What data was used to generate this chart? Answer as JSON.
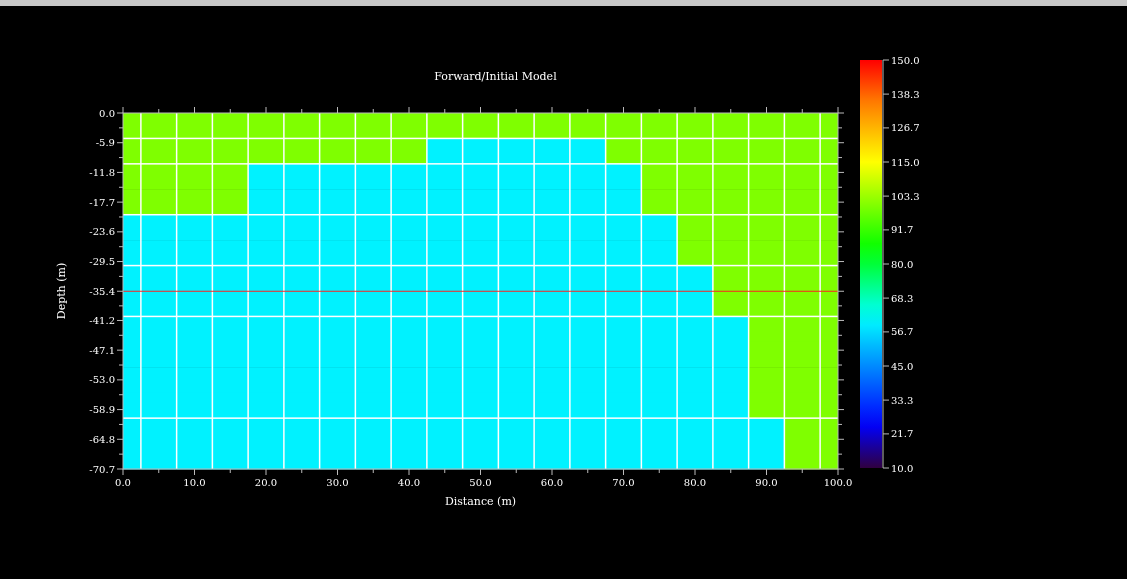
{
  "chart_data": {
    "type": "heatmap",
    "title": "Forward/Initial Model",
    "xlabel": "Distance (m)",
    "ylabel": "Depth (m)",
    "x": [
      1.25,
      5,
      10,
      15,
      20,
      25,
      30,
      35,
      40,
      45,
      50,
      55,
      60,
      65,
      70,
      75,
      80,
      85,
      90,
      95,
      98.75
    ],
    "cells": [
      [
        100,
        100,
        100,
        100,
        100,
        100,
        100,
        100,
        100,
        100,
        100,
        100,
        100,
        100,
        100,
        100,
        100,
        100,
        100,
        100,
        100
      ],
      [
        100,
        100,
        100,
        100,
        100,
        100,
        100,
        100,
        100,
        60,
        60,
        60,
        60,
        60,
        100,
        100,
        100,
        100,
        100,
        100,
        100
      ],
      [
        100,
        100,
        100,
        100,
        60,
        60,
        60,
        60,
        60,
        60,
        60,
        60,
        60,
        60,
        60,
        100,
        100,
        100,
        100,
        100,
        100
      ],
      [
        100,
        100,
        100,
        100,
        60,
        60,
        60,
        60,
        60,
        60,
        60,
        60,
        60,
        60,
        60,
        100,
        100,
        100,
        100,
        100,
        100
      ],
      [
        60,
        60,
        60,
        60,
        60,
        60,
        60,
        60,
        60,
        60,
        60,
        60,
        60,
        60,
        60,
        60,
        100,
        100,
        100,
        100,
        100
      ],
      [
        60,
        60,
        60,
        60,
        60,
        60,
        60,
        60,
        60,
        60,
        60,
        60,
        60,
        60,
        60,
        60,
        100,
        100,
        100,
        100,
        100
      ],
      [
        60,
        60,
        60,
        60,
        60,
        60,
        60,
        60,
        60,
        60,
        60,
        60,
        60,
        60,
        60,
        60,
        60,
        100,
        100,
        100,
        100
      ],
      [
        60,
        60,
        60,
        60,
        60,
        60,
        60,
        60,
        60,
        60,
        60,
        60,
        60,
        60,
        60,
        60,
        60,
        100,
        100,
        100,
        100
      ],
      [
        60,
        60,
        60,
        60,
        60,
        60,
        60,
        60,
        60,
        60,
        60,
        60,
        60,
        60,
        60,
        60,
        60,
        60,
        100,
        100,
        100
      ],
      [
        60,
        60,
        60,
        60,
        60,
        60,
        60,
        60,
        60,
        60,
        60,
        60,
        60,
        60,
        60,
        60,
        60,
        60,
        100,
        100,
        100
      ],
      [
        60,
        60,
        60,
        60,
        60,
        60,
        60,
        60,
        60,
        60,
        60,
        60,
        60,
        60,
        60,
        60,
        60,
        60,
        100,
        100,
        100
      ],
      [
        60,
        60,
        60,
        60,
        60,
        60,
        60,
        60,
        60,
        60,
        60,
        60,
        60,
        60,
        60,
        60,
        60,
        60,
        100,
        100,
        100
      ],
      [
        60,
        60,
        60,
        60,
        60,
        60,
        60,
        60,
        60,
        60,
        60,
        60,
        60,
        60,
        60,
        60,
        60,
        60,
        60,
        100,
        100
      ],
      [
        60,
        60,
        60,
        60,
        60,
        60,
        60,
        60,
        60,
        60,
        60,
        60,
        60,
        60,
        60,
        60,
        60,
        60,
        60,
        100,
        100
      ]
    ],
    "xlim": [
      0,
      100
    ],
    "xticks": [
      {
        "value": 0,
        "label": "0.0"
      },
      {
        "value": 5,
        "label": null
      },
      {
        "value": 10,
        "label": "10.0"
      },
      {
        "value": 15,
        "label": null
      },
      {
        "value": 20,
        "label": "20.0"
      },
      {
        "value": 25,
        "label": null
      },
      {
        "value": 30,
        "label": "30.0"
      },
      {
        "value": 35,
        "label": null
      },
      {
        "value": 40,
        "label": "40.0"
      },
      {
        "value": 45,
        "label": null
      },
      {
        "value": 50,
        "label": "50.0"
      },
      {
        "value": 55,
        "label": null
      },
      {
        "value": 60,
        "label": "60.0"
      },
      {
        "value": 65,
        "label": null
      },
      {
        "value": 70,
        "label": "70.0"
      },
      {
        "value": 75,
        "label": null
      },
      {
        "value": 80,
        "label": "80.0"
      },
      {
        "value": 85,
        "label": null
      },
      {
        "value": 90,
        "label": "90.0"
      },
      {
        "value": 95,
        "label": null
      },
      {
        "value": 100,
        "label": "100.0"
      }
    ],
    "ylim": [
      -70.7,
      0
    ],
    "yticks": [
      {
        "value": 0,
        "label": "0.0"
      },
      {
        "value": -2.95,
        "label": null
      },
      {
        "value": -5.9,
        "label": "-5.9"
      },
      {
        "value": -8.85,
        "label": null
      },
      {
        "value": -11.8,
        "label": "-11.8"
      },
      {
        "value": -14.75,
        "label": null
      },
      {
        "value": -17.7,
        "label": "-17.7"
      },
      {
        "value": -20.65,
        "label": null
      },
      {
        "value": -23.6,
        "label": "-23.6"
      },
      {
        "value": -26.55,
        "label": null
      },
      {
        "value": -29.5,
        "label": "-29.5"
      },
      {
        "value": -32.45,
        "label": null
      },
      {
        "value": -35.4,
        "label": "-35.4"
      },
      {
        "value": -38.3,
        "label": null
      },
      {
        "value": -41.2,
        "label": "-41.2"
      },
      {
        "value": -44.15,
        "label": null
      },
      {
        "value": -47.1,
        "label": "-47.1"
      },
      {
        "value": -50.05,
        "label": null
      },
      {
        "value": -53.0,
        "label": "-53.0"
      },
      {
        "value": -55.95,
        "label": null
      },
      {
        "value": -58.9,
        "label": "-58.9"
      },
      {
        "value": -61.85,
        "label": null
      },
      {
        "value": -64.8,
        "label": "-64.8"
      },
      {
        "value": -67.75,
        "label": null
      },
      {
        "value": -70.7,
        "label": "-70.7"
      }
    ],
    "clim": [
      10,
      150
    ],
    "cticks": [
      {
        "value": 10,
        "label": "10.0"
      },
      {
        "value": 21.7,
        "label": "21.7"
      },
      {
        "value": 33.3,
        "label": "33.3"
      },
      {
        "value": 45,
        "label": "45.0"
      },
      {
        "value": 56.7,
        "label": "56.7"
      },
      {
        "value": 68.3,
        "label": "68.3"
      },
      {
        "value": 80,
        "label": "80.0"
      },
      {
        "value": 91.7,
        "label": "91.7"
      },
      {
        "value": 103.3,
        "label": "103.3"
      },
      {
        "value": 115,
        "label": "115.0"
      },
      {
        "value": 126.7,
        "label": "126.7"
      },
      {
        "value": 138.3,
        "label": "138.3"
      },
      {
        "value": 150,
        "label": "150.0"
      }
    ],
    "ref_lines": [
      {
        "axis": "y",
        "value": -35.4,
        "label": null,
        "color": "#ff2020"
      }
    ],
    "grid": false
  }
}
